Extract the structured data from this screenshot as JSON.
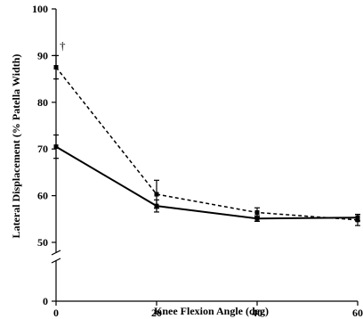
{
  "chart_data": {
    "type": "line",
    "xlabel": "Knee Flexion Angle (deg)",
    "ylabel": "Lateral Displacement (% Patella Width)",
    "x": [
      0,
      20,
      40,
      60
    ],
    "x_ticks": [
      "0",
      "20",
      "40",
      "60"
    ],
    "y_ticks": [
      "0",
      "50",
      "60",
      "70",
      "80",
      "90",
      "100"
    ],
    "ylim": [
      0,
      100
    ],
    "y_axis_break": [
      0,
      47
    ],
    "grid": false,
    "legend": "none",
    "series": [
      {
        "line_style": "solid",
        "values": [
          70.5,
          57.8,
          55.1,
          55.3
        ],
        "error": [
          2.5,
          1.3,
          0.6,
          0.7
        ]
      },
      {
        "line_style": "dashed",
        "values": [
          87.5,
          60.3,
          56.4,
          54.8
        ],
        "error": [
          2.5,
          3.0,
          1.0,
          1.2
        ]
      }
    ],
    "annotations": [
      {
        "text": "†",
        "x": 0,
        "y": 87.5
      }
    ]
  }
}
